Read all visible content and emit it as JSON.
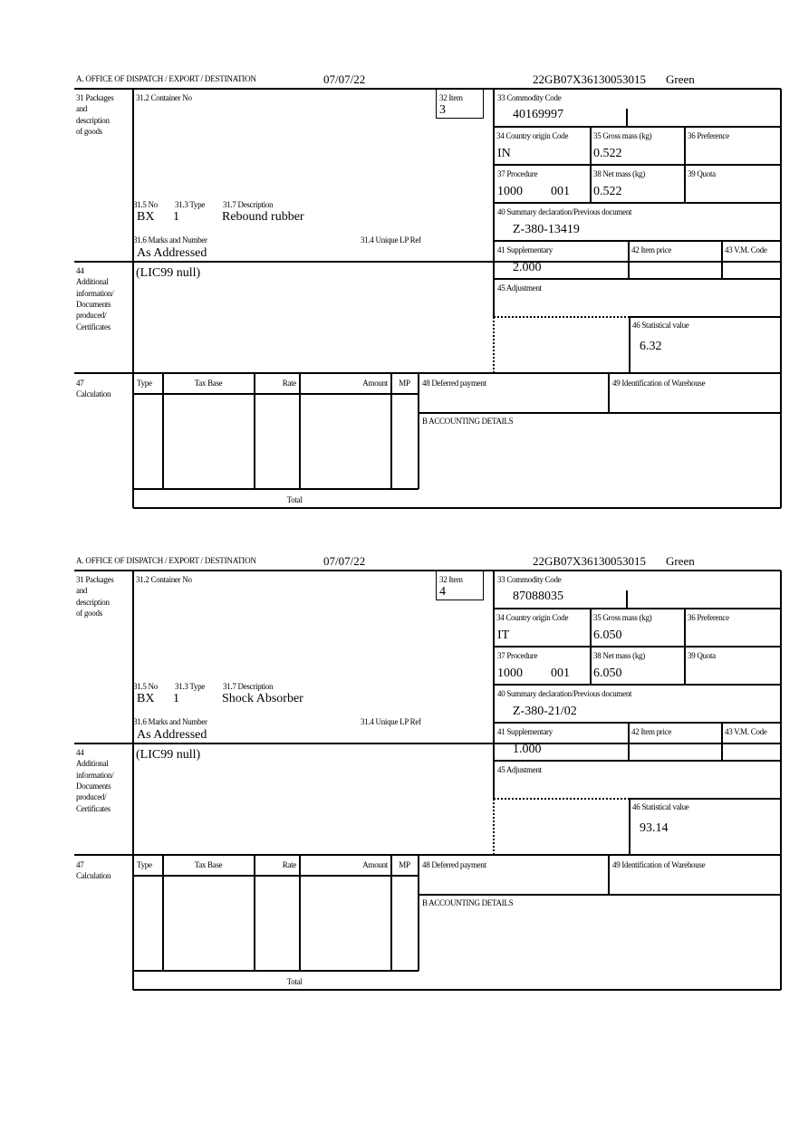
{
  "labels": {
    "office": "A.  OFFICE OF DISPATCH / EXPORT / DESTINATION",
    "packages": [
      "31 Packages",
      "and",
      "description",
      "of goods"
    ],
    "container_no": "31.2 Container No",
    "item": "32 Item",
    "commodity_code": "33 Commodity Code",
    "country_origin": "34 Country origin Code",
    "gross_mass": "35 Gross mass (kg)",
    "preference": "36 Preference",
    "procedure": "37 Procedure",
    "net_mass": "38 Net mass (kg)",
    "quota": "39 Quota",
    "summary_declaration": "40 Summary declaration/Previous document",
    "supplementary": "41 Supplementary",
    "item_price": "42 Item price",
    "vm_code": "43 V.M. Code",
    "adjustment": "45 Adjustment",
    "statistical_value": "46 Statistical value",
    "no": "31.5 No",
    "type": "31.3 Type",
    "description": "31.7 Description",
    "marks": "31.6 Marks and Number",
    "unique_lp_ref": "31.4 Unique LP Ref",
    "additional_info": [
      "44",
      "Additional",
      "information/",
      "Documents",
      "produced/",
      "Certificates"
    ],
    "calculation": [
      "47",
      "Calculation"
    ],
    "calc_columns": [
      "Type",
      "Tax Base",
      "Rate",
      "Amount",
      "MP"
    ],
    "total": "Total",
    "deferred_payment": "48 Deferred payment",
    "warehouse": "49 Identification of Warehouse",
    "accounting": "B ACCOUNTING DETAILS"
  },
  "items": [
    {
      "date": "07/07/22",
      "reference": "22GB07X36130053015",
      "route": "Green",
      "item_no": "3",
      "commodity_code": "40169997",
      "country_origin": "IN",
      "gross_mass": "0.522",
      "procedure": "1000",
      "procedure_suffix": "001",
      "net_mass": "0.522",
      "summary_declaration": "Z-380-13419",
      "supplementary": "2.000",
      "statistical_value": "6.32",
      "no": "BX",
      "type": "1",
      "description": "Rebound rubber",
      "marks": "As Addressed",
      "additional_info": "(LIC99 null)"
    },
    {
      "date": "07/07/22",
      "reference": "22GB07X36130053015",
      "route": "Green",
      "item_no": "4",
      "commodity_code": "87088035",
      "country_origin": "IT",
      "gross_mass": "6.050",
      "procedure": "1000",
      "procedure_suffix": "001",
      "net_mass": "6.050",
      "summary_declaration": "Z-380-21/02",
      "supplementary": "1.000",
      "statistical_value": "93.14",
      "no": "BX",
      "type": "1",
      "description": "Shock Absorber",
      "marks": "As Addressed",
      "additional_info": "(LIC99 null)"
    }
  ]
}
